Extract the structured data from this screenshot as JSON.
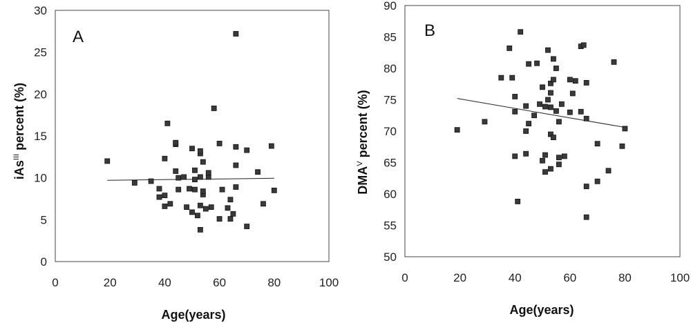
{
  "chart_data": [
    {
      "type": "scatter",
      "panel_label": "A",
      "xlabel": "Age(years)",
      "ylabel_main": "iAs",
      "ylabel_sup": "III",
      "ylabel_rest": " percent (%)",
      "xlim": [
        0,
        100
      ],
      "ylim": [
        0,
        30
      ],
      "xticks": [
        0,
        20,
        40,
        60,
        80,
        100
      ],
      "yticks": [
        0,
        5,
        10,
        15,
        20,
        25,
        30
      ],
      "grid": false,
      "trendline": {
        "x": [
          19,
          80
        ],
        "y": [
          9.7,
          9.95
        ]
      },
      "points": [
        [
          19,
          12.0
        ],
        [
          29,
          9.4
        ],
        [
          35,
          9.6
        ],
        [
          38,
          7.7
        ],
        [
          38,
          8.7
        ],
        [
          40,
          6.6
        ],
        [
          40,
          7.9
        ],
        [
          40,
          12.3
        ],
        [
          41,
          16.5
        ],
        [
          42,
          6.9
        ],
        [
          44,
          10.8
        ],
        [
          44,
          14.0
        ],
        [
          44,
          14.2
        ],
        [
          45,
          8.6
        ],
        [
          45,
          10.0
        ],
        [
          47,
          10.1
        ],
        [
          48,
          6.5
        ],
        [
          49,
          8.7
        ],
        [
          50,
          5.9
        ],
        [
          50,
          13.5
        ],
        [
          51,
          8.6
        ],
        [
          51,
          9.8
        ],
        [
          51,
          10.9
        ],
        [
          52,
          5.5
        ],
        [
          53,
          3.8
        ],
        [
          53,
          6.7
        ],
        [
          53,
          10.1
        ],
        [
          53,
          12.9
        ],
        [
          53,
          13.2
        ],
        [
          54,
          8.0
        ],
        [
          54,
          8.4
        ],
        [
          54,
          11.9
        ],
        [
          55,
          6.3
        ],
        [
          56,
          10.1
        ],
        [
          56,
          10.6
        ],
        [
          57,
          6.5
        ],
        [
          58,
          18.3
        ],
        [
          60,
          5.1
        ],
        [
          60,
          14.1
        ],
        [
          61,
          8.6
        ],
        [
          63,
          6.4
        ],
        [
          64,
          5.1
        ],
        [
          64,
          7.4
        ],
        [
          65,
          5.7
        ],
        [
          66,
          8.9
        ],
        [
          66,
          11.5
        ],
        [
          66,
          13.7
        ],
        [
          66,
          27.2
        ],
        [
          70,
          4.2
        ],
        [
          70,
          13.3
        ],
        [
          74,
          10.7
        ],
        [
          76,
          6.9
        ],
        [
          79,
          13.8
        ],
        [
          80,
          8.5
        ]
      ]
    },
    {
      "type": "scatter",
      "panel_label": "B",
      "xlabel": "Age(years)",
      "ylabel_main": "DMA",
      "ylabel_sup": "V",
      "ylabel_rest": " percent (%)",
      "xlim": [
        0,
        100
      ],
      "ylim": [
        50,
        90
      ],
      "xticks": [
        0,
        20,
        40,
        60,
        80,
        100
      ],
      "yticks": [
        50,
        55,
        60,
        65,
        70,
        75,
        80,
        85,
        90
      ],
      "grid": false,
      "trendline": {
        "x": [
          19,
          80
        ],
        "y": [
          75.2,
          70.6
        ]
      },
      "points": [
        [
          19,
          70.2
        ],
        [
          29,
          71.5
        ],
        [
          35,
          78.5
        ],
        [
          38,
          83.2
        ],
        [
          39,
          78.5
        ],
        [
          40,
          66.0
        ],
        [
          40,
          73.1
        ],
        [
          40,
          75.5
        ],
        [
          41,
          58.8
        ],
        [
          42,
          85.8
        ],
        [
          44,
          66.4
        ],
        [
          44,
          70.0
        ],
        [
          44,
          74.0
        ],
        [
          45,
          71.2
        ],
        [
          45,
          80.7
        ],
        [
          47,
          72.5
        ],
        [
          48,
          80.8
        ],
        [
          49,
          74.3
        ],
        [
          50,
          65.3
        ],
        [
          50,
          77.0
        ],
        [
          51,
          63.5
        ],
        [
          51,
          66.2
        ],
        [
          51,
          73.9
        ],
        [
          52,
          75.0
        ],
        [
          52,
          82.9
        ],
        [
          53,
          64.0
        ],
        [
          53,
          69.5
        ],
        [
          53,
          73.8
        ],
        [
          53,
          76.1
        ],
        [
          53,
          77.6
        ],
        [
          54,
          69.0
        ],
        [
          54,
          78.2
        ],
        [
          54,
          81.5
        ],
        [
          55,
          73.2
        ],
        [
          55,
          80.0
        ],
        [
          56,
          64.7
        ],
        [
          56,
          65.8
        ],
        [
          56,
          71.5
        ],
        [
          57,
          74.3
        ],
        [
          58,
          66.0
        ],
        [
          60,
          73.0
        ],
        [
          60,
          78.2
        ],
        [
          61,
          76.0
        ],
        [
          62,
          78.0
        ],
        [
          64,
          73.1
        ],
        [
          64,
          83.5
        ],
        [
          65,
          83.7
        ],
        [
          66,
          56.3
        ],
        [
          66,
          61.2
        ],
        [
          66,
          72.0
        ],
        [
          66,
          77.7
        ],
        [
          70,
          62.0
        ],
        [
          70,
          68.0
        ],
        [
          74,
          63.7
        ],
        [
          76,
          81.0
        ],
        [
          79,
          67.6
        ],
        [
          80,
          70.4
        ]
      ]
    }
  ]
}
